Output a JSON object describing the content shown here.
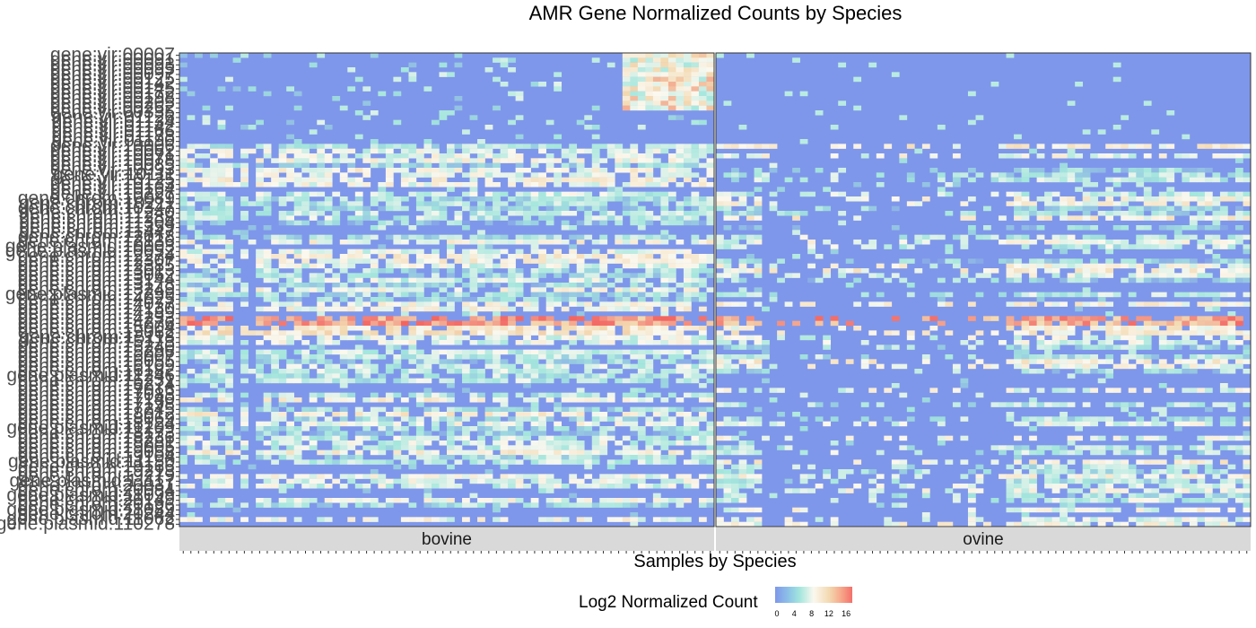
{
  "chart_data": {
    "type": "heatmap",
    "title": "AMR Gene Normalized Counts by Species",
    "xlabel": "Samples by Species",
    "ylabel": "",
    "facets": [
      "bovine",
      "ovine"
    ],
    "y_labels": [
      "gene:vir:00007",
      "gene:vir:00091",
      "gene:vir:00093",
      "gene:vir:00095",
      "gene:vir:00097",
      "gene:vir:00125",
      "gene:vir:00142",
      "gene:vir:00145",
      "gene:vir:00172",
      "gene:vir:00198",
      "gene:vir:00205",
      "gene:vir:00262",
      "gene:vir:00335",
      "gene:vir:01126",
      "gene:vir:01134",
      "gene:vir:01142",
      "gene:vir:01166",
      "gene:vir:01178",
      "gene:vir:01190",
      "gene:vir:10006",
      "gene:vir:10062",
      "gene:vir:10071",
      "gene:vir:10078",
      "gene:vir:10085",
      "gene:vir:10093",
      "gene:vir:10111",
      "gene:vir:10125",
      "gene:vir:10133",
      "gene:vir:10164",
      "gene:vir:10227",
      "gene:chrom:10089",
      "gene:chrom:10211",
      "gene:chrom:10347",
      "gene:chrom:11240",
      "gene:chrom:11288",
      "gene:chrom:11304",
      "gene:chrom:11359",
      "gene:chrom:11447",
      "gene:chrom:12018",
      "gene:chrom:12136",
      "gene:plasmid:10003",
      "gene:plasmid:10052",
      "gene:chrom:12274",
      "gene:chrom:12307",
      "gene:chrom:12385",
      "gene:chrom:13013",
      "gene:chrom:13062",
      "gene:chrom:13144",
      "gene:chrom:13178",
      "gene:chrom:13249",
      "gene:plasmid:12299",
      "gene:chrom:14025",
      "gene:chrom:14077",
      "gene:chrom:14130",
      "gene:chrom:14189",
      "gene:chrom:14233",
      "gene:chrom:14276",
      "gene:chrom:15004",
      "gene:chrom:15062",
      "gene:chrom:15118",
      "gene:chrom:15173",
      "gene:chrom:15240",
      "gene:chrom:15296",
      "gene:chrom:16007",
      "gene:chrom:16055",
      "gene:chrom:16109",
      "gene:chrom:16182",
      "gene:plasmid:11246",
      "gene:chrom:16231",
      "gene:chrom:16274",
      "gene:chrom:17016",
      "gene:chrom:17083",
      "gene:chrom:17140",
      "gene:chrom:17198",
      "gene:chrom:17245",
      "gene:chrom:18012",
      "gene:chrom:18069",
      "gene:chrom:18124",
      "gene:plasmid:11209",
      "gene:chrom:18173",
      "gene:chrom:18236",
      "gene:chrom:18281",
      "gene:chrom:19005",
      "gene:chrom:19058",
      "gene:chrom:19104",
      "gene:plasmid:11150",
      "gene:chrom:19166",
      "gene:chrom:19213",
      "gene:chrom:19279",
      "gene:plasmid:11117",
      "gene:chrom:20031",
      "gene:chrom:20084",
      "gene:plasmid:11099",
      "gene:chrom:20149",
      "gene:chrom:20196",
      "gene:plasmid:11089",
      "gene:chrom:20244",
      "gene:plasmid:11062",
      "gene:plasmid:110278"
    ],
    "n_samples": [
      70,
      70
    ],
    "value_range": [
      0,
      17
    ],
    "legend": {
      "title": "Log2 Normalized Count",
      "ticks": [
        "0",
        "4",
        "8",
        "12",
        "16"
      ],
      "tick_values": [
        0,
        4,
        8,
        12,
        16
      ],
      "position": "bottom",
      "colors": [
        "#7f97ea",
        "#a4e6dd",
        "#fbf8ef",
        "#f3d9b1",
        "#f4706a"
      ]
    },
    "grid": false
  }
}
